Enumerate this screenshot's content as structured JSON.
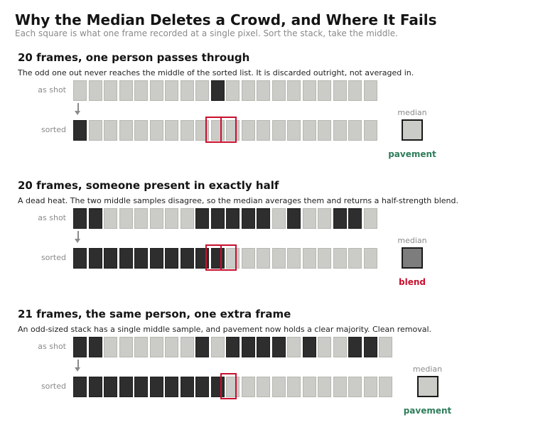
{
  "page": {
    "title": "Why the Median Deletes a Crowd, and Where It Fails",
    "subtitle": "Each square is what one frame recorded at a single pixel. Sort the stack, take the middle."
  },
  "labels": {
    "as_shot": "as shot",
    "sorted": "sorted",
    "median": "median"
  },
  "colors": {
    "pavement": "#cbcbc7",
    "person": "#2e2e2e",
    "blend": "#7d7d7d",
    "highlight": "#c8102e",
    "good": "#2e7d5b",
    "bad": "#c8102e"
  },
  "panels": [
    {
      "heading": "20 frames, one person passes through",
      "caption": "The odd one out never reaches the middle of the sorted list. It is discarded outright, not averaged in.",
      "as_shot": "LLLLLLLLLDLLLLLLLLLL",
      "sorted": "DLLLLLLLLLLLLLLLLLLL",
      "middle_indices": [
        9,
        10
      ],
      "result_label": "pavement",
      "result_kind": "good",
      "result_fill": "pavement"
    },
    {
      "heading": "20 frames, someone present in exactly half",
      "caption": "A dead heat. The two middle samples disagree, so the median averages them and returns a half-strength blend.",
      "as_shot": "DDLLLLLLDDDDDLDLLDDL",
      "sorted": "DDDDDDDDDDLLLLLLLLLL",
      "middle_indices": [
        9,
        10
      ],
      "result_label": "blend",
      "result_kind": "bad",
      "result_fill": "blend"
    },
    {
      "heading": "21 frames, the same person, one extra frame",
      "caption": "An odd-sized stack has a single middle sample, and pavement now holds a clear majority. Clean removal.",
      "as_shot": "DDLLLLLLDLDDDDLDLLDDL",
      "sorted": "DDDDDDDDDDLLLLLLLLLLL",
      "middle_indices": [
        10
      ],
      "result_label": "pavement",
      "result_kind": "good",
      "result_fill": "pavement"
    }
  ]
}
